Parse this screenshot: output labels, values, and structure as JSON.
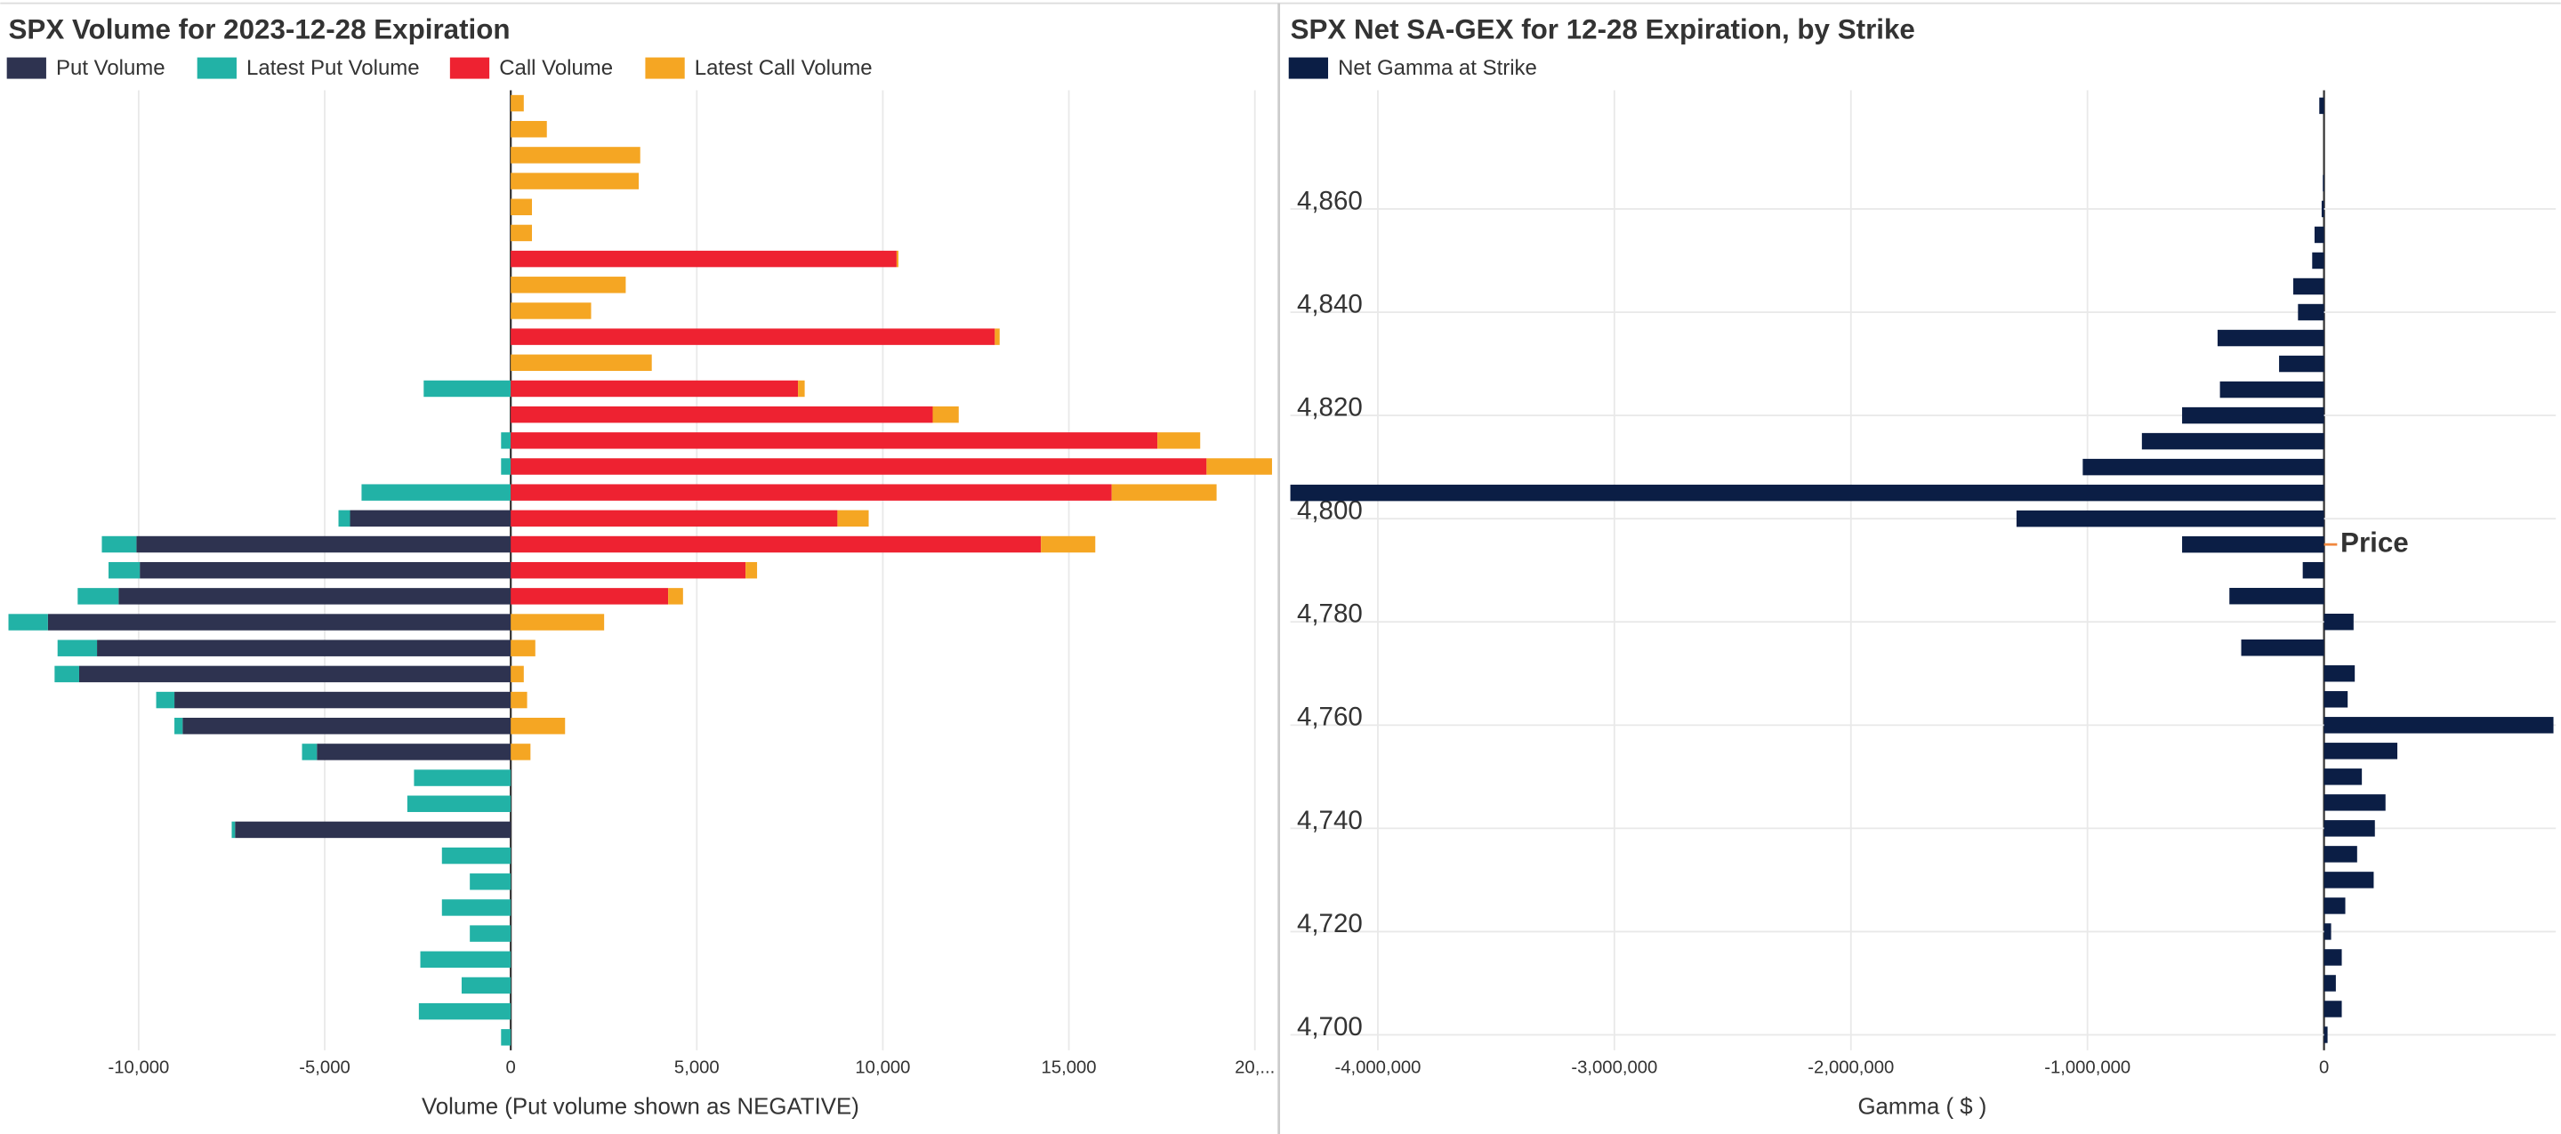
{
  "chart_data": [
    {
      "type": "bar",
      "orientation": "horizontal",
      "stacked": true,
      "title": "SPX Volume for 2023-12-28 Expiration",
      "x_label": "Volume (Put volume shown as NEGATIVE)",
      "categories": [
        null,
        null,
        null,
        null,
        null,
        null,
        null,
        null,
        null,
        null,
        null,
        null,
        null,
        null,
        null,
        null,
        null,
        null,
        null,
        null,
        null,
        null,
        null,
        null,
        null,
        null,
        null,
        null,
        null,
        null,
        null,
        null,
        null,
        null,
        null,
        null,
        null
      ],
      "series": [
        {
          "name": "Put Volume",
          "color": "#2e3350",
          "values": [
            0,
            0,
            0,
            0,
            0,
            0,
            0,
            0,
            0,
            0,
            0,
            0,
            0,
            0,
            0,
            0,
            -4320,
            -10060,
            -9970,
            -10540,
            -12440,
            -11120,
            -11600,
            -9040,
            -8820,
            -5210,
            0,
            0,
            -7410,
            0,
            0,
            0,
            0,
            0,
            0,
            0,
            0
          ]
        },
        {
          "name": "Latest Put Volume",
          "color": "#22b2a6",
          "values": [
            0,
            0,
            0,
            0,
            0,
            0,
            0,
            0,
            0,
            0,
            0,
            -2340,
            0,
            -260,
            -260,
            -4010,
            -310,
            -930,
            -840,
            -1100,
            -1060,
            -1060,
            -660,
            -490,
            -220,
            -400,
            -2600,
            -2780,
            -90,
            -1850,
            -1100,
            -1850,
            -1100,
            -2430,
            -1320,
            -2470,
            -260
          ]
        },
        {
          "name": "Call Volume",
          "color": "#ee2231",
          "values": [
            0,
            0,
            0,
            0,
            0,
            0,
            10370,
            0,
            0,
            13010,
            0,
            7720,
            11340,
            17380,
            18700,
            16150,
            8780,
            14250,
            6310,
            4230,
            0,
            0,
            0,
            0,
            0,
            0,
            0,
            0,
            0,
            0,
            0,
            0,
            0,
            0,
            0,
            0,
            0
          ]
        },
        {
          "name": "Latest Call Volume",
          "color": "#f5a623",
          "values": [
            350,
            970,
            3480,
            3440,
            570,
            570,
            50,
            3090,
            2160,
            130,
            3790,
            180,
            700,
            1150,
            1760,
            2820,
            840,
            1460,
            310,
            400,
            2510,
            660,
            350,
            440,
            1460,
            530,
            0,
            0,
            0,
            0,
            0,
            0,
            0,
            0,
            0,
            0,
            0
          ]
        }
      ],
      "xlim": [
        -13500,
        20600
      ],
      "xticks": [
        {
          "value": -10000,
          "label": "-10,000"
        },
        {
          "value": -5000,
          "label": "-5,000"
        },
        0,
        {
          "value": 5000,
          "label": "5,000"
        },
        {
          "value": 10000,
          "label": "10,000"
        },
        {
          "value": 15000,
          "label": "15,000"
        },
        {
          "value": 20000,
          "label": "20,..."
        }
      ],
      "grid": true,
      "legend": "top-left"
    },
    {
      "type": "bar",
      "orientation": "horizontal",
      "title": "SPX Net SA-GEX for 12-28 Expiration, by Strike",
      "x_label": "Gamma ( $ )",
      "y": [
        4880,
        4875,
        4870,
        4865,
        4860,
        4855,
        4850,
        4845,
        4840,
        4835,
        4830,
        4825,
        4820,
        4815,
        4810,
        4805,
        4800,
        4795,
        4790,
        4785,
        4780,
        4775,
        4770,
        4765,
        4760,
        4755,
        4750,
        4745,
        4740,
        4735,
        4730,
        4725,
        4720,
        4715,
        4710,
        4705,
        4700
      ],
      "series": [
        {
          "name": "Net Gamma at Strike",
          "color": "#0b1e45",
          "values": [
            -20000,
            0,
            0,
            -5000,
            -10000,
            -40000,
            -50000,
            -130000,
            -110000,
            -450000,
            -190000,
            -440000,
            -600000,
            -770000,
            -1020000,
            -4370000,
            -1300000,
            -600000,
            -90000,
            -400000,
            125000,
            -350000,
            130000,
            100000,
            970000,
            310000,
            160000,
            260000,
            215000,
            140000,
            210000,
            90000,
            30000,
            75000,
            50000,
            75000,
            15000
          ]
        }
      ],
      "xlim": [
        -4370000,
        980000
      ],
      "xticks": [
        {
          "value": -4000000,
          "label": "-4,000,000"
        },
        {
          "value": -3000000,
          "label": "-3,000,000"
        },
        {
          "value": -2000000,
          "label": "-2,000,000"
        },
        {
          "value": -1000000,
          "label": "-1,000,000"
        },
        0
      ],
      "ylim": [
        4697,
        4883
      ],
      "yticks": [
        {
          "value": 4700,
          "label": "4,700"
        },
        {
          "value": 4720,
          "label": "4,720"
        },
        {
          "value": 4740,
          "label": "4,740"
        },
        {
          "value": 4760,
          "label": "4,760"
        },
        {
          "value": 4780,
          "label": "4,780"
        },
        {
          "value": 4800,
          "label": "4,800"
        },
        {
          "value": 4820,
          "label": "4,820"
        },
        {
          "value": 4840,
          "label": "4,840"
        },
        {
          "value": 4860,
          "label": "4,860"
        }
      ],
      "annotation": {
        "value": 4795,
        "label": "Price",
        "color": "#f0883e"
      },
      "grid": true,
      "legend": "top-left"
    }
  ]
}
